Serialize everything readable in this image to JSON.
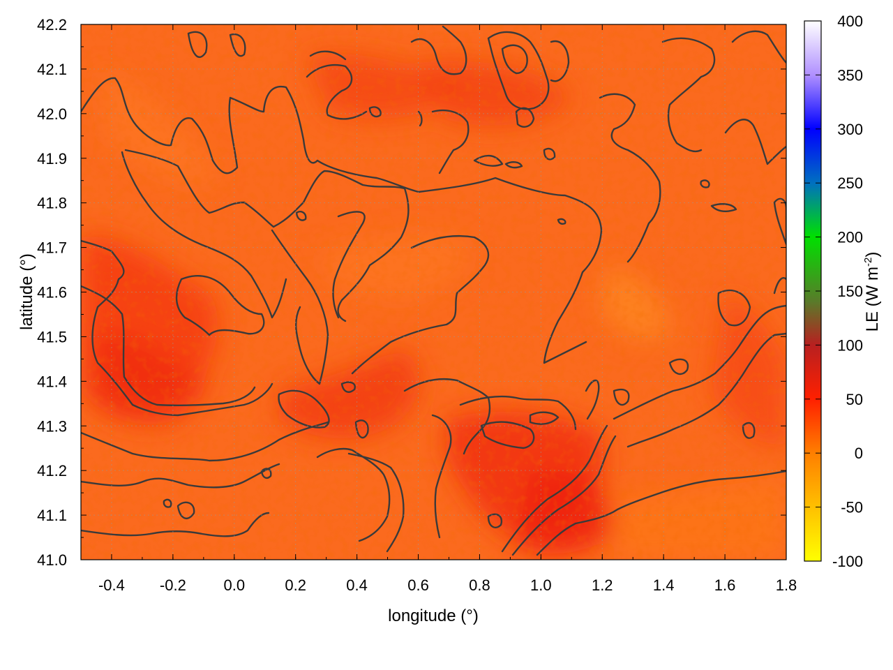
{
  "chart_data": {
    "type": "heatmap",
    "title": "",
    "xlabel": "longitude (°)",
    "ylabel": "latitude (°)",
    "xlim": [
      -0.5,
      1.8
    ],
    "ylim": [
      41.0,
      42.2
    ],
    "x_ticks": [
      "-0.4",
      "-0.2",
      "0.0",
      "0.2",
      "0.4",
      "0.6",
      "0.8",
      "1.0",
      "1.2",
      "1.4",
      "1.6",
      "1.8"
    ],
    "x_tick_values": [
      -0.4,
      -0.2,
      0.0,
      0.2,
      0.4,
      0.6,
      0.8,
      1.0,
      1.2,
      1.4,
      1.6,
      1.8
    ],
    "y_ticks": [
      "41.0",
      "41.1",
      "41.2",
      "41.3",
      "41.4",
      "41.5",
      "41.6",
      "41.7",
      "41.8",
      "41.9",
      "42.0",
      "42.1",
      "42.2"
    ],
    "y_tick_values": [
      41.0,
      41.1,
      41.2,
      41.3,
      41.4,
      41.5,
      41.6,
      41.7,
      41.8,
      41.9,
      42.0,
      42.1,
      42.2
    ],
    "grid": true,
    "colorbar": {
      "label": "LE (W m",
      "label_sup": "-2",
      "label_end": ")",
      "range": [
        -100,
        400
      ],
      "ticks": [
        "400",
        "350",
        "300",
        "250",
        "200",
        "150",
        "100",
        "50",
        "0",
        "-50",
        "-100"
      ],
      "tick_values": [
        400,
        350,
        300,
        250,
        200,
        150,
        100,
        50,
        0,
        -50,
        -100
      ],
      "colors": [
        {
          "v": -100,
          "c": "#ffff00"
        },
        {
          "v": -50,
          "c": "#ffc000"
        },
        {
          "v": 0,
          "c": "#ff7f00"
        },
        {
          "v": 50,
          "c": "#ff2000"
        },
        {
          "v": 100,
          "c": "#b82020"
        },
        {
          "v": 140,
          "c": "#5a7a2a"
        },
        {
          "v": 200,
          "c": "#00e000"
        },
        {
          "v": 250,
          "c": "#0070c0"
        },
        {
          "v": 300,
          "c": "#0000ff"
        },
        {
          "v": 350,
          "c": "#b090ff"
        },
        {
          "v": 400,
          "c": "#ffffff"
        }
      ]
    },
    "field_typical_range": [
      0,
      60
    ],
    "contours": "terrain elevation isolines"
  }
}
